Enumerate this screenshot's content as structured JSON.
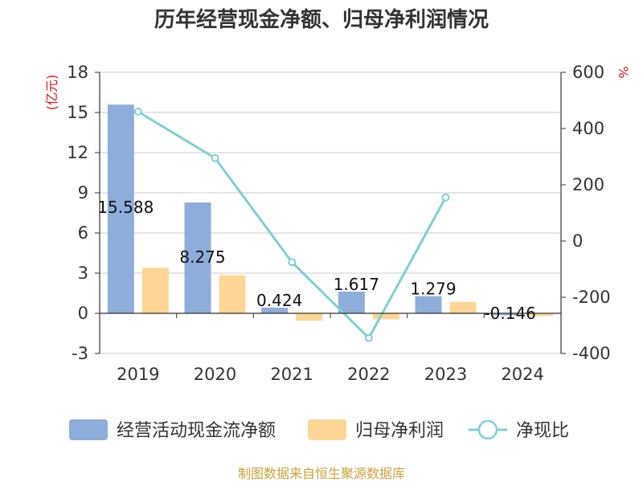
{
  "chart_data": {
    "type": "bar",
    "title": "历年经营现金净额、归母净利润情况",
    "categories": [
      "2019",
      "2020",
      "2021",
      "2022",
      "2023",
      "2024"
    ],
    "left_axis": {
      "unit": "(亿元)",
      "ylim": [
        -3,
        18
      ],
      "ticks": [
        "18",
        "15",
        "12",
        "9",
        "6",
        "3",
        "0",
        "-3"
      ]
    },
    "right_axis": {
      "unit": "%",
      "ylim": [
        -400,
        600
      ],
      "ticks": [
        "600",
        "400",
        "200",
        "0",
        "-200",
        "-400"
      ]
    },
    "series": [
      {
        "name": "经营活动现金流净额",
        "kind": "bar",
        "color": "#8eaddb",
        "axis": "left",
        "values": [
          15.588,
          8.275,
          0.424,
          1.617,
          1.279,
          -0.146
        ],
        "labels": [
          "15.588",
          "8.275",
          "0.424",
          "1.617",
          "1.279",
          "-0.146"
        ]
      },
      {
        "name": "归母净利润",
        "kind": "bar",
        "color": "#fdd696",
        "axis": "left",
        "values": [
          3.4,
          2.85,
          -0.55,
          -0.45,
          0.85,
          -0.2
        ]
      },
      {
        "name": "净现比",
        "kind": "line",
        "color": "#7fd0d4",
        "axis": "right",
        "values": [
          460,
          295,
          -75,
          -345,
          155,
          null
        ]
      }
    ],
    "grid": true,
    "legend_position": "bottom"
  },
  "source": "制图数据来自恒生聚源数据库"
}
